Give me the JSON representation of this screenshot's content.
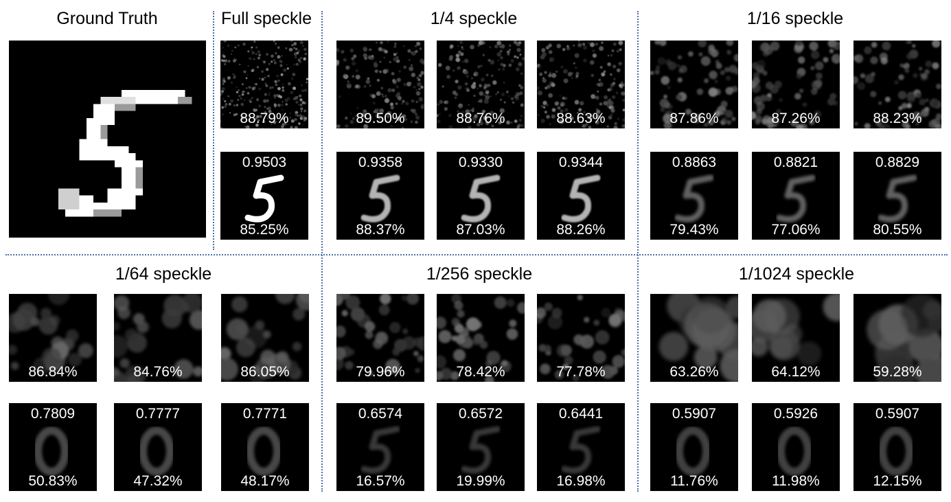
{
  "titles": {
    "ground_truth": "Ground Truth",
    "full": "Full speckle",
    "q4": "1/4 speckle",
    "q16": "1/16 speckle",
    "q64": "1/64 speckle",
    "q256": "1/256 speckle",
    "q1024": "1/1024 speckle"
  },
  "groups": [
    {
      "key": "full",
      "speckle_acc": [
        "88.79%"
      ],
      "recon_ssim": [
        "0.9503"
      ],
      "recon_acc": [
        "85.25%"
      ]
    },
    {
      "key": "q4",
      "speckle_acc": [
        "89.50%",
        "88.76%",
        "88.63%"
      ],
      "recon_ssim": [
        "0.9358",
        "0.9330",
        "0.9344"
      ],
      "recon_acc": [
        "88.37%",
        "87.03%",
        "88.26%"
      ]
    },
    {
      "key": "q16",
      "speckle_acc": [
        "87.86%",
        "87.26%",
        "88.23%"
      ],
      "recon_ssim": [
        "0.8863",
        "0.8821",
        "0.8829"
      ],
      "recon_acc": [
        "79.43%",
        "77.06%",
        "80.55%"
      ]
    },
    {
      "key": "q64",
      "speckle_acc": [
        "86.84%",
        "84.76%",
        "86.05%"
      ],
      "recon_ssim": [
        "0.7809",
        "0.7777",
        "0.7771"
      ],
      "recon_acc": [
        "50.83%",
        "47.32%",
        "48.17%"
      ]
    },
    {
      "key": "q256",
      "speckle_acc": [
        "79.96%",
        "78.42%",
        "77.78%"
      ],
      "recon_ssim": [
        "0.6574",
        "0.6572",
        "0.6441"
      ],
      "recon_acc": [
        "16.57%",
        "19.99%",
        "16.98%"
      ]
    },
    {
      "key": "q1024",
      "speckle_acc": [
        "63.26%",
        "64.12%",
        "59.28%"
      ],
      "recon_ssim": [
        "0.5907",
        "0.5926",
        "0.5907"
      ],
      "recon_acc": [
        "11.76%",
        "11.98%",
        "12.15%"
      ]
    }
  ]
}
